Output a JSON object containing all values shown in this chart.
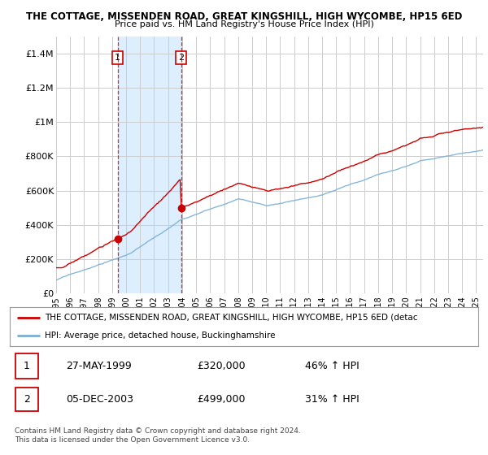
{
  "title_line1": "THE COTTAGE, MISSENDEN ROAD, GREAT KINGSHILL, HIGH WYCOMBE, HP15 6ED",
  "title_line2": "Price paid vs. HM Land Registry's House Price Index (HPI)",
  "ylabel_ticks": [
    "£0",
    "£200K",
    "£400K",
    "£600K",
    "£800K",
    "£1M",
    "£1.2M",
    "£1.4M"
  ],
  "ytick_values": [
    0,
    200000,
    400000,
    600000,
    800000,
    1000000,
    1200000,
    1400000
  ],
  "ylim": [
    0,
    1500000
  ],
  "xlim_start": 1995.0,
  "xlim_end": 2025.5,
  "purchase1_date": 1999.4,
  "purchase1_price": 320000,
  "purchase2_date": 2003.92,
  "purchase2_price": 499000,
  "legend_line1": "THE COTTAGE, MISSENDEN ROAD, GREAT KINGSHILL, HIGH WYCOMBE, HP15 6ED (detac",
  "legend_line2": "HPI: Average price, detached house, Buckinghamshire",
  "table_row1_date": "27-MAY-1999",
  "table_row1_price": "£320,000",
  "table_row1_hpi": "46% ↑ HPI",
  "table_row2_date": "05-DEC-2003",
  "table_row2_price": "£499,000",
  "table_row2_hpi": "31% ↑ HPI",
  "footnote": "Contains HM Land Registry data © Crown copyright and database right 2024.\nThis data is licensed under the Open Government Licence v3.0.",
  "line_color_red": "#cc0000",
  "line_color_blue": "#7bafd4",
  "shade_color": "#ddeeff",
  "vline_color": "#cc0000",
  "background_color": "#ffffff",
  "grid_color": "#cccccc"
}
